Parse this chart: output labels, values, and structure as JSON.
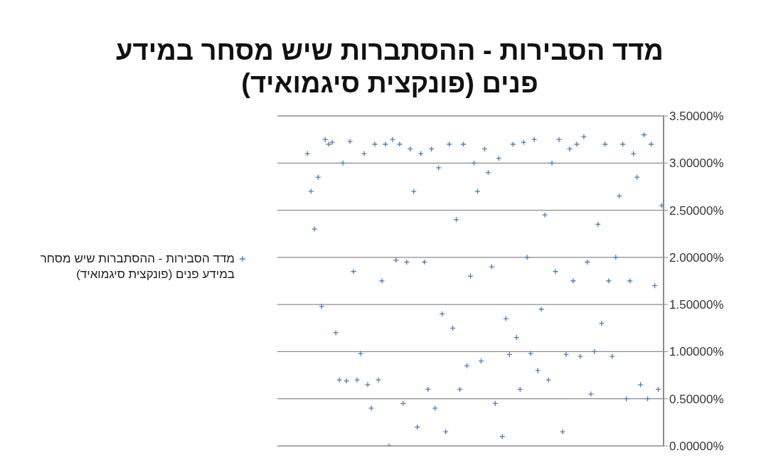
{
  "chart_data": {
    "type": "scatter",
    "title": "מדד הסבירות - ההסתברות שיש מסחר במידע פנים (פונקצית סיגמואיד)",
    "categories": [
      null,
      null,
      null,
      null,
      null,
      null,
      null,
      null,
      null,
      null,
      null,
      null,
      null,
      null,
      null,
      null,
      null,
      null,
      null,
      null,
      null,
      null,
      null,
      null,
      null,
      null,
      null,
      null,
      null,
      null,
      null,
      null,
      null,
      null,
      null,
      null,
      null,
      null,
      null,
      null,
      null,
      null,
      null,
      null,
      null,
      null,
      null,
      null,
      null,
      null,
      null,
      null,
      null,
      null,
      null,
      null,
      null,
      null,
      null,
      null,
      null,
      null,
      null,
      null,
      null,
      null,
      null,
      null,
      null,
      null,
      null,
      null,
      null,
      null,
      null,
      null,
      null,
      null,
      null,
      null,
      null,
      null,
      null,
      null,
      null,
      null,
      null,
      null,
      null,
      null,
      null,
      null,
      null,
      null,
      null,
      null,
      null,
      null,
      null,
      null,
      null,
      null,
      null,
      null,
      null,
      null,
      null,
      null,
      null
    ],
    "series": [
      {
        "name": "מדד הסבירות - ההסתברות שיש מסחר במידע פנים (פונקצית סיגמואיד)",
        "color": "#4a7ebb",
        "values": [
          null,
          null,
          null,
          null,
          null,
          null,
          null,
          null,
          3.1,
          2.7,
          2.3,
          2.85,
          1.48,
          3.25,
          3.2,
          3.22,
          1.2,
          0.7,
          3.0,
          0.69,
          3.23,
          1.85,
          0.7,
          0.98,
          3.1,
          0.65,
          0.4,
          3.2,
          0.7,
          1.75,
          3.2,
          0.0,
          3.25,
          1.97,
          3.2,
          0.45,
          1.95,
          3.15,
          2.7,
          0.2,
          3.1,
          1.95,
          0.6,
          3.15,
          0.4,
          2.95,
          1.4,
          0.15,
          3.2,
          1.25,
          2.4,
          0.6,
          3.2,
          0.85,
          1.8,
          3.0,
          2.7,
          0.9,
          3.15,
          2.9,
          1.9,
          0.45,
          3.05,
          0.1,
          1.35,
          0.97,
          3.2,
          1.15,
          0.6,
          3.22,
          2.0,
          0.98,
          3.25,
          0.8,
          1.45,
          2.45,
          0.7,
          3.0,
          1.85,
          3.25,
          0.15,
          0.97,
          3.15,
          1.75,
          3.2,
          0.95,
          3.28,
          1.95,
          0.55,
          1.0,
          2.35,
          1.3,
          3.2,
          1.75,
          0.95,
          2.0,
          2.65,
          3.2,
          0.5,
          1.75,
          3.1,
          2.85,
          0.65,
          3.3,
          0.5,
          3.2,
          1.7,
          0.6,
          2.55
        ]
      }
    ],
    "ylim": [
      0,
      3.5
    ],
    "yticks": [
      {
        "value": 0,
        "label": "0.00000%"
      },
      {
        "value": 0.5,
        "label": "0.50000%"
      },
      {
        "value": 1,
        "label": "1.00000%"
      },
      {
        "value": 1.5,
        "label": "1.50000%"
      },
      {
        "value": 2,
        "label": "2.00000%"
      },
      {
        "value": 2.5,
        "label": "2.50000%"
      },
      {
        "value": 3,
        "label": "3.00000%"
      },
      {
        "value": 3.5,
        "label": "3.50000%"
      }
    ],
    "grid": "y",
    "legend": "left",
    "marker": "cross"
  }
}
